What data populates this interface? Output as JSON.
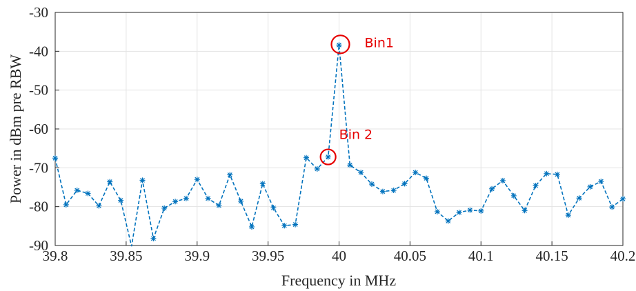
{
  "chart_data": {
    "type": "line",
    "title": "",
    "xlabel": "Frequency in MHz",
    "ylabel": "Power in dBm pre RBW",
    "xlim": [
      39.8,
      40.2
    ],
    "ylim": [
      -90,
      -30
    ],
    "xticks": [
      39.8,
      39.85,
      39.9,
      39.95,
      40,
      40.05,
      40.1,
      40.15,
      40.2
    ],
    "xtick_labels": [
      "39.8",
      "39.85",
      "39.9",
      "39.95",
      "40",
      "40.05",
      "40.1",
      "40.15",
      "40.2"
    ],
    "yticks": [
      -90,
      -80,
      -70,
      -60,
      -50,
      -40,
      -30
    ],
    "ytick_labels": [
      "-90",
      "-80",
      "-70",
      "-60",
      "-50",
      "-40",
      "-30"
    ],
    "grid": true,
    "series": [
      {
        "color": "#0072BD",
        "linestyle": "dashed",
        "marker": "asterisk",
        "x": [
          39.8,
          39.8077,
          39.8154,
          39.8231,
          39.8308,
          39.8385,
          39.8462,
          39.8538,
          39.8615,
          39.8692,
          39.8769,
          39.8846,
          39.8923,
          39.9,
          39.9077,
          39.9154,
          39.9231,
          39.9308,
          39.9385,
          39.9462,
          39.9538,
          39.9615,
          39.9692,
          39.9769,
          39.9846,
          39.9923,
          40.0,
          40.0077,
          40.0154,
          40.0231,
          40.0308,
          40.0385,
          40.0462,
          40.0538,
          40.0615,
          40.0692,
          40.0769,
          40.0846,
          40.0923,
          40.1,
          40.1077,
          40.1154,
          40.1231,
          40.1308,
          40.1385,
          40.1462,
          40.1538,
          40.1615,
          40.1692,
          40.1769,
          40.1846,
          40.1923,
          40.2
        ],
        "y": [
          -67.5,
          -79.5,
          -75.8,
          -76.6,
          -79.8,
          -73.6,
          -78.4,
          -90.2,
          -73.2,
          -88.2,
          -80.4,
          -78.7,
          -77.9,
          -73.0,
          -77.9,
          -79.7,
          -71.8,
          -78.6,
          -85.2,
          -74.1,
          -80.3,
          -84.9,
          -84.6,
          -67.4,
          -70.3,
          -67.2,
          -38.4,
          -69.3,
          -71.2,
          -74.2,
          -76.1,
          -75.8,
          -74.1,
          -71.2,
          -72.7,
          -81.3,
          -83.7,
          -81.5,
          -80.9,
          -81.1,
          -75.4,
          -73.3,
          -77.2,
          -81.0,
          -74.6,
          -71.5,
          -71.7,
          -82.2,
          -77.8,
          -74.9,
          -73.5,
          -80.1,
          -78.0
        ]
      }
    ],
    "annotations": [
      {
        "label": "Bin1",
        "x": 40.0,
        "y": -38.4,
        "color": "#e60000"
      },
      {
        "label": "Bin 2",
        "x": 39.9923,
        "y": -67.2,
        "color": "#e60000"
      }
    ]
  }
}
